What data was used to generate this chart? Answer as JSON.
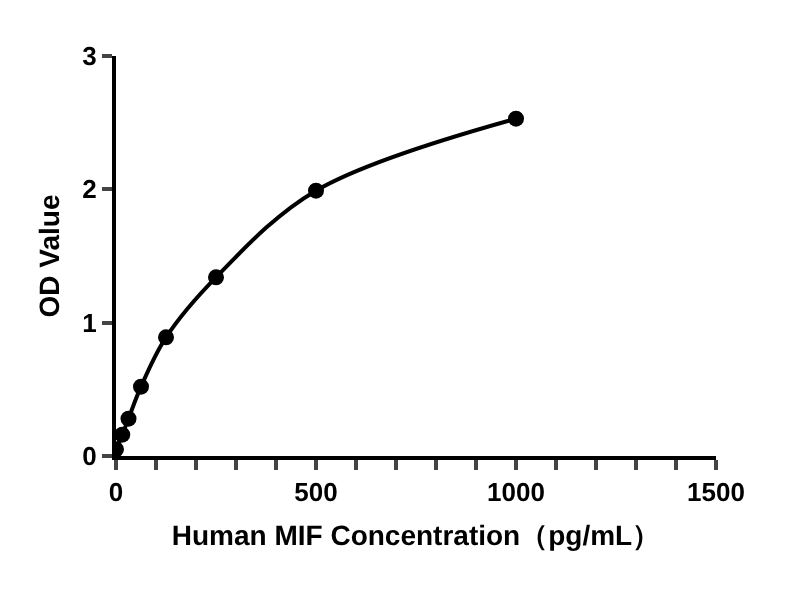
{
  "chart_data": {
    "type": "line",
    "xlabel": "Human MIF Concentration（pg/mL）",
    "ylabel": "OD Value",
    "x": [
      0,
      15.6,
      31.25,
      62.5,
      125,
      250,
      500,
      1000
    ],
    "series": [
      {
        "color": "#000000",
        "values": [
          0.05,
          0.16,
          0.28,
          0.52,
          0.89,
          1.34,
          1.99,
          2.53
        ]
      }
    ],
    "marker": "circle",
    "line_style": "solid",
    "grid": false,
    "xlim": [
      0,
      1500
    ],
    "ylim": [
      0,
      3
    ],
    "xticks": [
      0,
      {
        "value": 100,
        "label": null
      },
      {
        "value": 200,
        "label": null
      },
      {
        "value": 300,
        "label": null
      },
      {
        "value": 400,
        "label": null
      },
      500,
      {
        "value": 600,
        "label": null
      },
      {
        "value": 700,
        "label": null
      },
      {
        "value": 800,
        "label": null
      },
      {
        "value": 900,
        "label": null
      },
      1000,
      {
        "value": 1100,
        "label": null
      },
      {
        "value": 1200,
        "label": null
      },
      {
        "value": 1300,
        "label": null
      },
      {
        "value": 1400,
        "label": null
      },
      1500
    ],
    "yticks": [
      0,
      1,
      2,
      3
    ]
  }
}
